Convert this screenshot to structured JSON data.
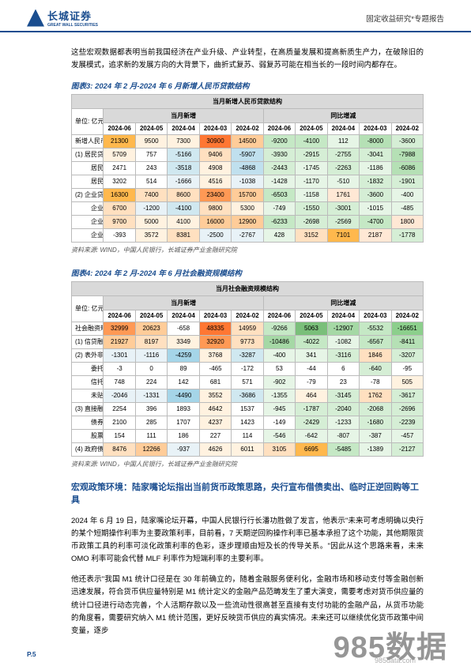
{
  "header": {
    "logo_cn": "长城证券",
    "logo_en": "GREAT WALL SECURITIES",
    "right": "固定收益研究*专题报告"
  },
  "intro_para": "这些宏观数据都表明当前我国经济在产业升级、产业转型，在高质量发展和提高新质生产力，在破除旧的发展模式，追求新的发展方向的大背景下，曲折式复苏、弱复苏可能在相当长的一段时间内都存在。",
  "chart3": {
    "title": "图表3: 2024 年 2 月-2024 年 6 月新增人民币贷款结构",
    "table_title": "当月新增人民币贷款结构",
    "unit_label": "单位: 亿元",
    "group_a": "当月新增",
    "group_b": "同比增减",
    "months": [
      "2024-06",
      "2024-05",
      "2024-04",
      "2024-03",
      "2024-02",
      "2024-06",
      "2024-05",
      "2024-04",
      "2024-03",
      "2024-02"
    ],
    "rows": [
      {
        "label": "新增人民币贷款: 当月值",
        "cls": "row-label",
        "vals": [
          "21300",
          "9500",
          "7300",
          "30900",
          "14500",
          "-9200",
          "-4100",
          "112",
          "-8000",
          "-3600"
        ],
        "cell_colors": [
          "#ffb84d",
          "#fff2e0",
          "#fff2e0",
          "#ff7733",
          "#ffcc99",
          "#c5e8c5",
          "#c5e8c5",
          "#e6f5e6",
          "#b5e0b5",
          "#d5eed5"
        ]
      },
      {
        "label": "(1) 居民贷款",
        "cls": "row-label",
        "vals": [
          "5709",
          "757",
          "-5166",
          "9406",
          "-5907",
          "-3930",
          "-2915",
          "-2755",
          "-3041",
          "-7988"
        ],
        "cell_colors": [
          "#fff2e0",
          "#ffffff",
          "#d0e8f0",
          "#ffe0c0",
          "#c0e0ee",
          "#d5eed5",
          "#d5eed5",
          "#d5eed5",
          "#d5eed5",
          "#b5e0b5"
        ]
      },
      {
        "label": "居民短期",
        "cls": "indent2",
        "vals": [
          "2471",
          "243",
          "-3518",
          "4908",
          "-4868",
          "-2443",
          "-1745",
          "-2263",
          "-1186",
          "-6086"
        ],
        "cell_colors": [
          "#ffffff",
          "#ffffff",
          "#d0e8f0",
          "#fff2e0",
          "#c0e0ee",
          "#d5eed5",
          "#e6f5e6",
          "#d5eed5",
          "#e6f5e6",
          "#b5e0b5"
        ]
      },
      {
        "label": "居民中长期",
        "cls": "indent2",
        "vals": [
          "3202",
          "514",
          "-1666",
          "4516",
          "-1038",
          "-1428",
          "-1170",
          "-510",
          "-1832",
          "-1901"
        ],
        "cell_colors": [
          "#ffffff",
          "#ffffff",
          "#e8f2f7",
          "#fff2e0",
          "#e8f2f7",
          "#e6f5e6",
          "#e6f5e6",
          "#e6f5e6",
          "#d5eed5",
          "#d5eed5"
        ]
      },
      {
        "label": "(2) 企业贷款",
        "cls": "row-label",
        "vals": [
          "16300",
          "7400",
          "8600",
          "23400",
          "15700",
          "-6503",
          "-1158",
          "1761",
          "-3600",
          "-400"
        ],
        "cell_colors": [
          "#ffb84d",
          "#ffe0c0",
          "#ffe0c0",
          "#ff9955",
          "#ffcc99",
          "#c5e8c5",
          "#e6f5e6",
          "#ffe8d5",
          "#d5eed5",
          "#e6f5e6"
        ]
      },
      {
        "label": "企业短期",
        "cls": "indent2",
        "vals": [
          "6700",
          "-1200",
          "-4100",
          "9800",
          "5300",
          "-749",
          "-1550",
          "-3001",
          "-1015",
          "-485"
        ],
        "cell_colors": [
          "#ffe0c0",
          "#e8f2f7",
          "#d0e8f0",
          "#ffe0c0",
          "#fff2e0",
          "#e6f5e6",
          "#d5eed5",
          "#d5eed5",
          "#e6f5e6",
          "#e6f5e6"
        ]
      },
      {
        "label": "企业中长期",
        "cls": "indent2",
        "vals": [
          "9700",
          "5000",
          "4100",
          "16000",
          "12900",
          "-6233",
          "-2698",
          "-2569",
          "-4700",
          "1800"
        ],
        "cell_colors": [
          "#ffe0c0",
          "#fff2e0",
          "#fff2e0",
          "#ffcc99",
          "#ffcc99",
          "#c5e8c5",
          "#d5eed5",
          "#d5eed5",
          "#c5e8c5",
          "#ffe8d5"
        ]
      },
      {
        "label": "企业票据融资",
        "cls": "indent2",
        "vals": [
          "-393",
          "3572",
          "8381",
          "-2500",
          "-2767",
          "428",
          "3152",
          "7101",
          "2187",
          "-1778"
        ],
        "cell_colors": [
          "#ffffff",
          "#fff2e0",
          "#ffe0c0",
          "#e8f2f7",
          "#e8f2f7",
          "#e6f5e6",
          "#ffe0c0",
          "#ffb84d",
          "#ffe8d5",
          "#d5eed5"
        ]
      }
    ]
  },
  "chart4": {
    "title": "图表4: 2024 年 2 月-2024 年 6 月社会融资规模结构",
    "table_title": "当月社会融资规模结构",
    "unit_label": "单位: 亿元",
    "group_a": "当月新增",
    "group_b": "同比增减",
    "months": [
      "2024-06",
      "2024-05",
      "2024-04",
      "2024-03",
      "2024-02",
      "2024-06",
      "2024-05",
      "2024-04",
      "2024-03",
      "2024-02"
    ],
    "rows": [
      {
        "label": "社会融资规模: 当月值",
        "cls": "row-label",
        "vals": [
          "32999",
          "20623",
          "-658",
          "48335",
          "14959",
          "-9266",
          "5063",
          "-12907",
          "-5532",
          "-16651"
        ],
        "cell_colors": [
          "#ff9955",
          "#ffcc99",
          "#ffffff",
          "#ff7733",
          "#ffe0c0",
          "#c5e8c5",
          "#7abf7a",
          "#a5d8a5",
          "#c5e8c5",
          "#8ccf8c"
        ]
      },
      {
        "label": "(1) 信贷融资",
        "cls": "row-label",
        "vals": [
          "21927",
          "8197",
          "3349",
          "32920",
          "9773",
          "-10486",
          "-4022",
          "-1082",
          "-6567",
          "-8411"
        ],
        "cell_colors": [
          "#ffcc99",
          "#ffe0c0",
          "#fff2e0",
          "#ff9955",
          "#ffe0c0",
          "#a5d8a5",
          "#c5e8c5",
          "#e6f5e6",
          "#c5e8c5",
          "#b5e0b5"
        ]
      },
      {
        "label": "(2) 表外非标融资",
        "cls": "row-label",
        "vals": [
          "-1301",
          "-1116",
          "-4259",
          "3768",
          "-3287",
          "-400",
          "341",
          "-3116",
          "1846",
          "-3207"
        ],
        "cell_colors": [
          "#e8f2f7",
          "#e8f2f7",
          "#a5d5e8",
          "#fff2e0",
          "#d0e8f0",
          "#e6f5e6",
          "#e6f5e6",
          "#d5eed5",
          "#ffe0c0",
          "#d5eed5"
        ]
      },
      {
        "label": "委托贷款",
        "cls": "indent2",
        "vals": [
          "-3",
          "0",
          "89",
          "-465",
          "-172",
          "53",
          "-44",
          "6",
          "-640",
          "-95"
        ],
        "cell_colors": [
          "#ffffff",
          "#ffffff",
          "#ffffff",
          "#ffffff",
          "#ffffff",
          "#ffffff",
          "#ffffff",
          "#ffffff",
          "#d5eed5",
          "#ffffff"
        ]
      },
      {
        "label": "信托贷款",
        "cls": "indent2",
        "vals": [
          "748",
          "224",
          "142",
          "681",
          "571",
          "-902",
          "-79",
          "23",
          "-78",
          "505"
        ],
        "cell_colors": [
          "#ffffff",
          "#ffffff",
          "#ffffff",
          "#ffffff",
          "#ffffff",
          "#e6f5e6",
          "#ffffff",
          "#ffffff",
          "#ffffff",
          "#fff2e0"
        ]
      },
      {
        "label": "未贴现银行承兑汇票",
        "cls": "indent2",
        "vals": [
          "-2046",
          "-1331",
          "-4490",
          "3552",
          "-3686",
          "-1355",
          "464",
          "-3145",
          "1762",
          "-3617"
        ],
        "cell_colors": [
          "#e8f2f7",
          "#e8f2f7",
          "#a5d5e8",
          "#fff2e0",
          "#d0e8f0",
          "#e6f5e6",
          "#fff2e0",
          "#d5eed5",
          "#ffe0c0",
          "#d5eed5"
        ]
      },
      {
        "label": "(3) 直接融资",
        "cls": "row-label",
        "vals": [
          "2254",
          "396",
          "1893",
          "4642",
          "1537",
          "-945",
          "-1787",
          "-2040",
          "-2068",
          "-2696"
        ],
        "cell_colors": [
          "#ffffff",
          "#ffffff",
          "#ffffff",
          "#fff2e0",
          "#ffffff",
          "#e6f5e6",
          "#d5eed5",
          "#d5eed5",
          "#d5eed5",
          "#d5eed5"
        ]
      },
      {
        "label": "债券融资",
        "cls": "indent2",
        "vals": [
          "2100",
          "285",
          "1707",
          "4237",
          "1423",
          "-149",
          "-2429",
          "-1233",
          "-1680",
          "-2239"
        ],
        "cell_colors": [
          "#ffffff",
          "#ffffff",
          "#ffffff",
          "#fff2e0",
          "#ffffff",
          "#ffffff",
          "#d5eed5",
          "#e6f5e6",
          "#d5eed5",
          "#d5eed5"
        ]
      },
      {
        "label": "股票融资",
        "cls": "indent2",
        "vals": [
          "154",
          "111",
          "186",
          "227",
          "114",
          "-546",
          "-642",
          "-807",
          "-387",
          "-457"
        ],
        "cell_colors": [
          "#ffffff",
          "#ffffff",
          "#ffffff",
          "#ffffff",
          "#ffffff",
          "#e6f5e6",
          "#e6f5e6",
          "#e6f5e6",
          "#e6f5e6",
          "#e6f5e6"
        ]
      },
      {
        "label": "(4) 政府债券",
        "cls": "row-label",
        "vals": [
          "8476",
          "12266",
          "-937",
          "4626",
          "6011",
          "3105",
          "6695",
          "-5485",
          "-1389",
          "-2127"
        ],
        "cell_colors": [
          "#ffe0c0",
          "#ffcc99",
          "#e8f2f7",
          "#fff2e0",
          "#fff2e0",
          "#ffe0c0",
          "#ffb84d",
          "#c5e8c5",
          "#e6f5e6",
          "#d5eed5"
        ]
      }
    ]
  },
  "source_text": "资料来源: WIND，中国人民银行，长城证券产业金融研究院",
  "section": {
    "heading": "宏观政策环境：陆家嘴论坛指出当前货币政策思路，央行宣布借债卖出、临时正逆回购等工具",
    "p1": "2024 年 6 月 19 日，陆家嘴论坛开幕，中国人民银行行长潘功胜做了发言，他表示\"未来可考虑明确以央行的某个短期操作利率为主要政策利率，目前看，7 天期逆回购操作利率已基本承担了这个功能，其他期限货币政策工具的利率可淡化政策利率的色彩，逐步理顺由短及长的传导关系。\"因此从这个思路来看，未来 OMO 利率可能会代替 MLF 利率作为短端利率的主要利率。",
    "p2": "他还表示\"我国 M1 统计口径是在 30 年前确立的，随着金融服务便利化，金融市场和移动支付等金融创新迅速发展，符合货币供应量特别是 M1 统计定义的金融产品范畴发生了重大演变，需要考虑对货币供应量的统计口径进行动态完善，个人活期存款以及一些流动性很高甚至直接有支付功能的金融产品，从货币功能的角度看，需要研究纳入 M1 统计范围，更好反映货币供应的真实情况。未来还可以继续优化货币政策中间变量，逐步"
  },
  "page_num": "P.5",
  "watermark": "985数据",
  "watermark2": "985data.com"
}
